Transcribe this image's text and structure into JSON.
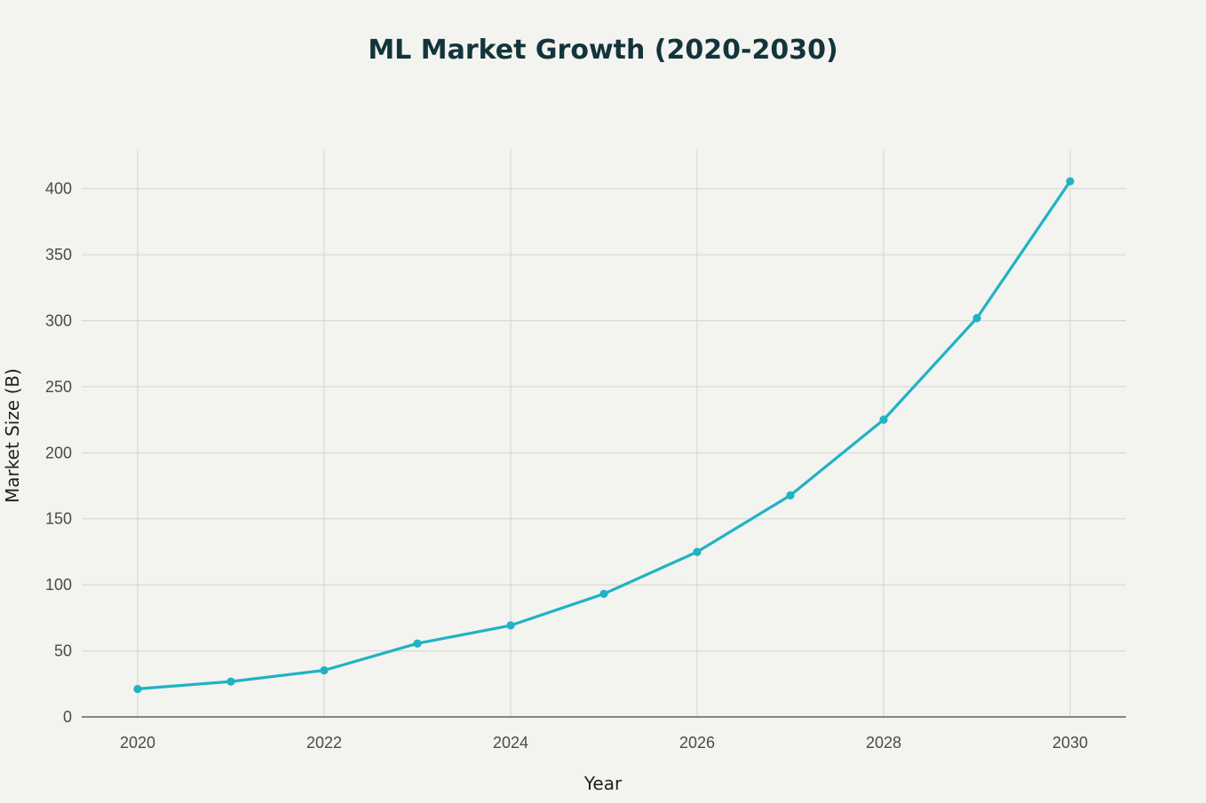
{
  "colors": {
    "background": "#f3f3ef",
    "series": "#1fb3c4",
    "grid": "#d3d3d0",
    "title": "#13343b"
  },
  "chart_data": {
    "type": "line",
    "title": "ML Market Growth (2020-2030)",
    "xlabel": "Year",
    "ylabel": "Market Size (B)",
    "xlim": [
      2019.4,
      2030.6
    ],
    "ylim": [
      0,
      430
    ],
    "xticks": [
      2020,
      2022,
      2024,
      2026,
      2028,
      2030
    ],
    "yticks": [
      0,
      50,
      100,
      150,
      200,
      250,
      300,
      350,
      400
    ],
    "grid": true,
    "legend": "none",
    "series": [
      {
        "name": "Market Size (B)",
        "x": [
          2020,
          2021,
          2022,
          2023,
          2024,
          2025,
          2026,
          2027,
          2028,
          2029,
          2030
        ],
        "values": [
          21.2,
          26.8,
          35.3,
          55.6,
          69.3,
          93.2,
          125.0,
          167.8,
          225.1,
          302.0,
          405.6
        ]
      }
    ]
  }
}
